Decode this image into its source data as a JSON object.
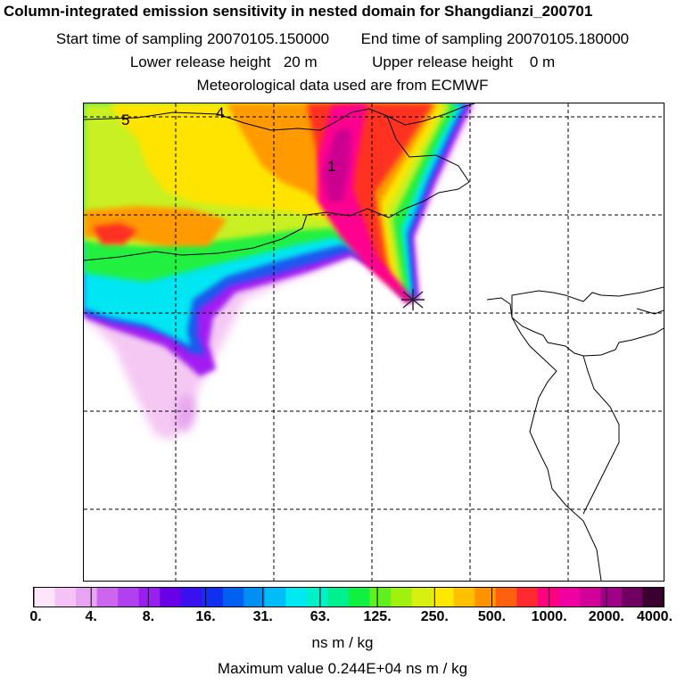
{
  "header": {
    "title": "Column-integrated emission sensitivity in nested domain for Shangdianzi_200701",
    "start_label": "Start time of sampling",
    "start_value": "20070105.150000",
    "end_label": "End time of sampling",
    "end_value": "20070105.180000",
    "lower_label": "Lower release height",
    "lower_value": "20 m",
    "upper_label": "Upper release height",
    "upper_value": "0 m",
    "met_text": "Meteorological data used are from ECMWF"
  },
  "map": {
    "contour_labels": [
      "5",
      "4",
      "1"
    ],
    "release_marker": "release-site-star"
  },
  "legend": {
    "ticks": [
      "0.",
      "4.",
      "8.",
      "16.",
      "31.",
      "63.",
      "125.",
      "250.",
      "500.",
      "1000.",
      "2000.",
      "4000."
    ],
    "colors": [
      "#fee6fa",
      "#f5c2f5",
      "#e8a3f2",
      "#cc66ee",
      "#b040f0",
      "#9a1fee",
      "#6a00e6",
      "#3a10ee",
      "#1030f0",
      "#0060f0",
      "#0090f4",
      "#00bcf8",
      "#00e8f0",
      "#00f0c8",
      "#00f090",
      "#10f040",
      "#60f020",
      "#a0f010",
      "#d8f010",
      "#ffe800",
      "#ffc000",
      "#ff9400",
      "#ff6010",
      "#ff2a30",
      "#ff0080",
      "#f000a0",
      "#d00098",
      "#a00088",
      "#700060",
      "#3a0030"
    ],
    "unit": "ns m / kg",
    "max_text": "Maximum value  0.244E+04 ns m / kg"
  },
  "colors": {
    "grid": "#000000",
    "coast": "#000000"
  }
}
